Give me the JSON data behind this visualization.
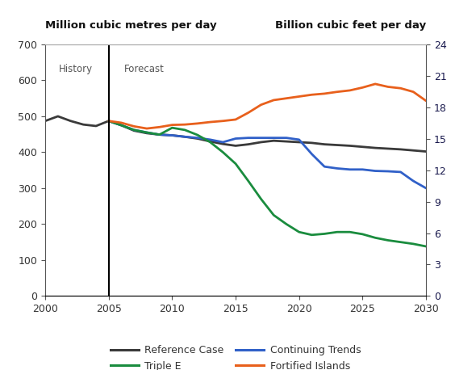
{
  "title_left": "Million cubic metres per day",
  "title_right": "Billion cubic feet per day",
  "xlim": [
    2000,
    2030
  ],
  "ylim_left": [
    0,
    700
  ],
  "ylim_right": [
    0,
    24
  ],
  "yticks_left": [
    0,
    100,
    200,
    300,
    400,
    500,
    600,
    700
  ],
  "yticks_right": [
    0,
    3,
    6,
    9,
    12,
    15,
    18,
    21,
    24
  ],
  "xticks": [
    2000,
    2005,
    2010,
    2015,
    2020,
    2025,
    2030
  ],
  "vline_x": 2005,
  "history_label": "History",
  "forecast_label": "Forecast",
  "background_color": "#ffffff",
  "axis_color": "#333333",
  "right_axis_color": "#1a1a4e",
  "label_color": "#666666",
  "series": {
    "reference_case": {
      "label": "Reference Case",
      "color": "#3a3a3a",
      "linewidth": 2.0,
      "x": [
        2000,
        2001,
        2002,
        2003,
        2004,
        2005,
        2006,
        2007,
        2008,
        2009,
        2010,
        2011,
        2012,
        2013,
        2014,
        2015,
        2016,
        2017,
        2018,
        2019,
        2020,
        2021,
        2022,
        2023,
        2024,
        2025,
        2026,
        2027,
        2028,
        2029,
        2030
      ],
      "y": [
        487,
        500,
        487,
        477,
        473,
        487,
        475,
        460,
        453,
        449,
        447,
        443,
        438,
        430,
        423,
        418,
        422,
        428,
        432,
        430,
        428,
        426,
        422,
        420,
        418,
        415,
        412,
        410,
        408,
        405,
        402
      ]
    },
    "continuing_trends": {
      "label": "Continuing Trends",
      "color": "#3060c8",
      "linewidth": 2.0,
      "x": [
        2005,
        2006,
        2007,
        2008,
        2009,
        2010,
        2011,
        2012,
        2013,
        2014,
        2015,
        2016,
        2017,
        2018,
        2019,
        2020,
        2021,
        2022,
        2023,
        2024,
        2025,
        2026,
        2027,
        2028,
        2029,
        2030
      ],
      "y": [
        487,
        475,
        462,
        455,
        449,
        447,
        443,
        440,
        435,
        428,
        438,
        440,
        440,
        440,
        440,
        435,
        395,
        360,
        355,
        352,
        352,
        348,
        347,
        345,
        320,
        300
      ]
    },
    "triple_e": {
      "label": "Triple E",
      "color": "#1a8c3e",
      "linewidth": 2.0,
      "x": [
        2005,
        2006,
        2007,
        2008,
        2009,
        2010,
        2011,
        2012,
        2013,
        2014,
        2015,
        2016,
        2017,
        2018,
        2019,
        2020,
        2021,
        2022,
        2023,
        2024,
        2025,
        2026,
        2027,
        2028,
        2029,
        2030
      ],
      "y": [
        487,
        475,
        462,
        455,
        449,
        468,
        462,
        448,
        428,
        400,
        368,
        320,
        270,
        225,
        200,
        178,
        170,
        173,
        178,
        178,
        172,
        162,
        155,
        150,
        145,
        138
      ]
    },
    "fortified_islands": {
      "label": "Fortified Islands",
      "color": "#e8601c",
      "linewidth": 2.0,
      "x": [
        2005,
        2006,
        2007,
        2008,
        2009,
        2010,
        2011,
        2012,
        2013,
        2014,
        2015,
        2016,
        2017,
        2018,
        2019,
        2020,
        2021,
        2022,
        2023,
        2024,
        2025,
        2026,
        2027,
        2028,
        2029,
        2030
      ],
      "y": [
        487,
        482,
        472,
        466,
        470,
        476,
        477,
        480,
        484,
        487,
        491,
        510,
        532,
        545,
        550,
        555,
        560,
        563,
        568,
        572,
        580,
        590,
        582,
        578,
        568,
        543
      ]
    }
  },
  "legend_order": [
    "reference_case",
    "triple_e",
    "continuing_trends",
    "fortified_islands"
  ]
}
